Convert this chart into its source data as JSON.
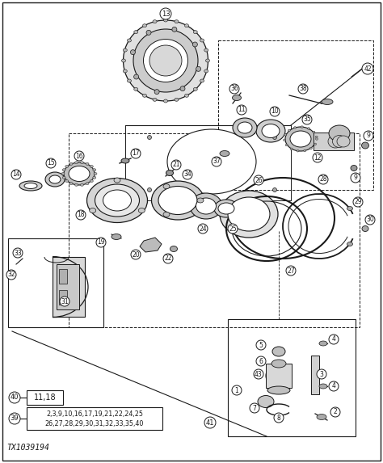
{
  "bg_color": "#ffffff",
  "line_color": "#1a1a1a",
  "text_color": "#1a1a1a",
  "fig_width": 4.74,
  "fig_height": 5.73,
  "dpi": 100,
  "label_40_text": "11,18",
  "label_39_text_1": "2,3,9,10,16,17,19,21,22,24,25",
  "label_39_text_2": "26,27,28,29,30,31,32,33,35,40",
  "bottom_label": "TX1039194"
}
